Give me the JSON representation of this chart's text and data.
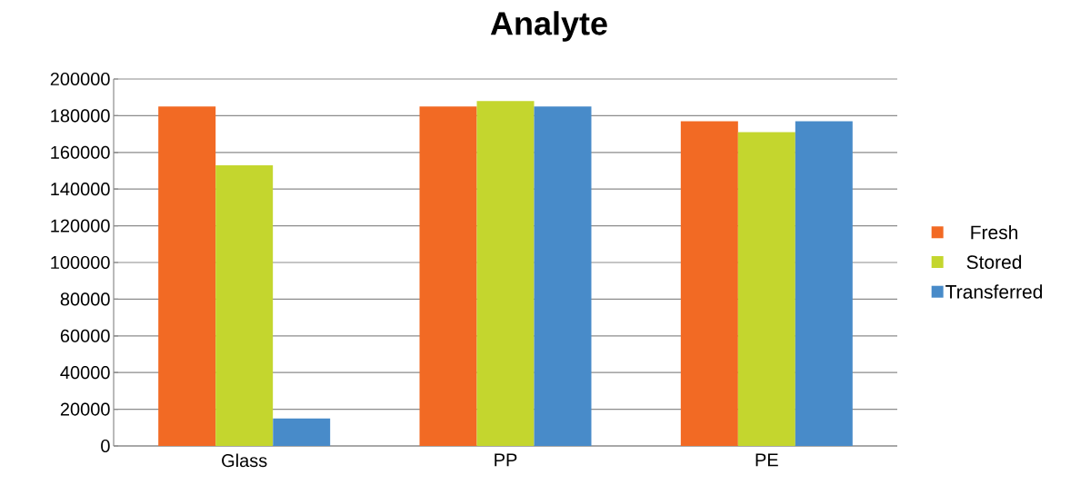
{
  "chart_data": {
    "type": "bar",
    "title": "Analyte",
    "categories": [
      "Glass",
      "PP",
      "PE"
    ],
    "series": [
      {
        "name": "Fresh",
        "color": "#f26a24",
        "values": [
          185000,
          185000,
          177000
        ]
      },
      {
        "name": "Stored",
        "color": "#c4d62e",
        "values": [
          153000,
          188000,
          171000
        ]
      },
      {
        "name": "Transferred",
        "color": "#488bc9",
        "values": [
          15000,
          185000,
          177000
        ]
      }
    ],
    "ylim": [
      0,
      200000
    ],
    "yticks": [
      0,
      20000,
      40000,
      60000,
      80000,
      100000,
      120000,
      140000,
      160000,
      180000,
      200000
    ],
    "grid": "y",
    "legend": "right"
  }
}
